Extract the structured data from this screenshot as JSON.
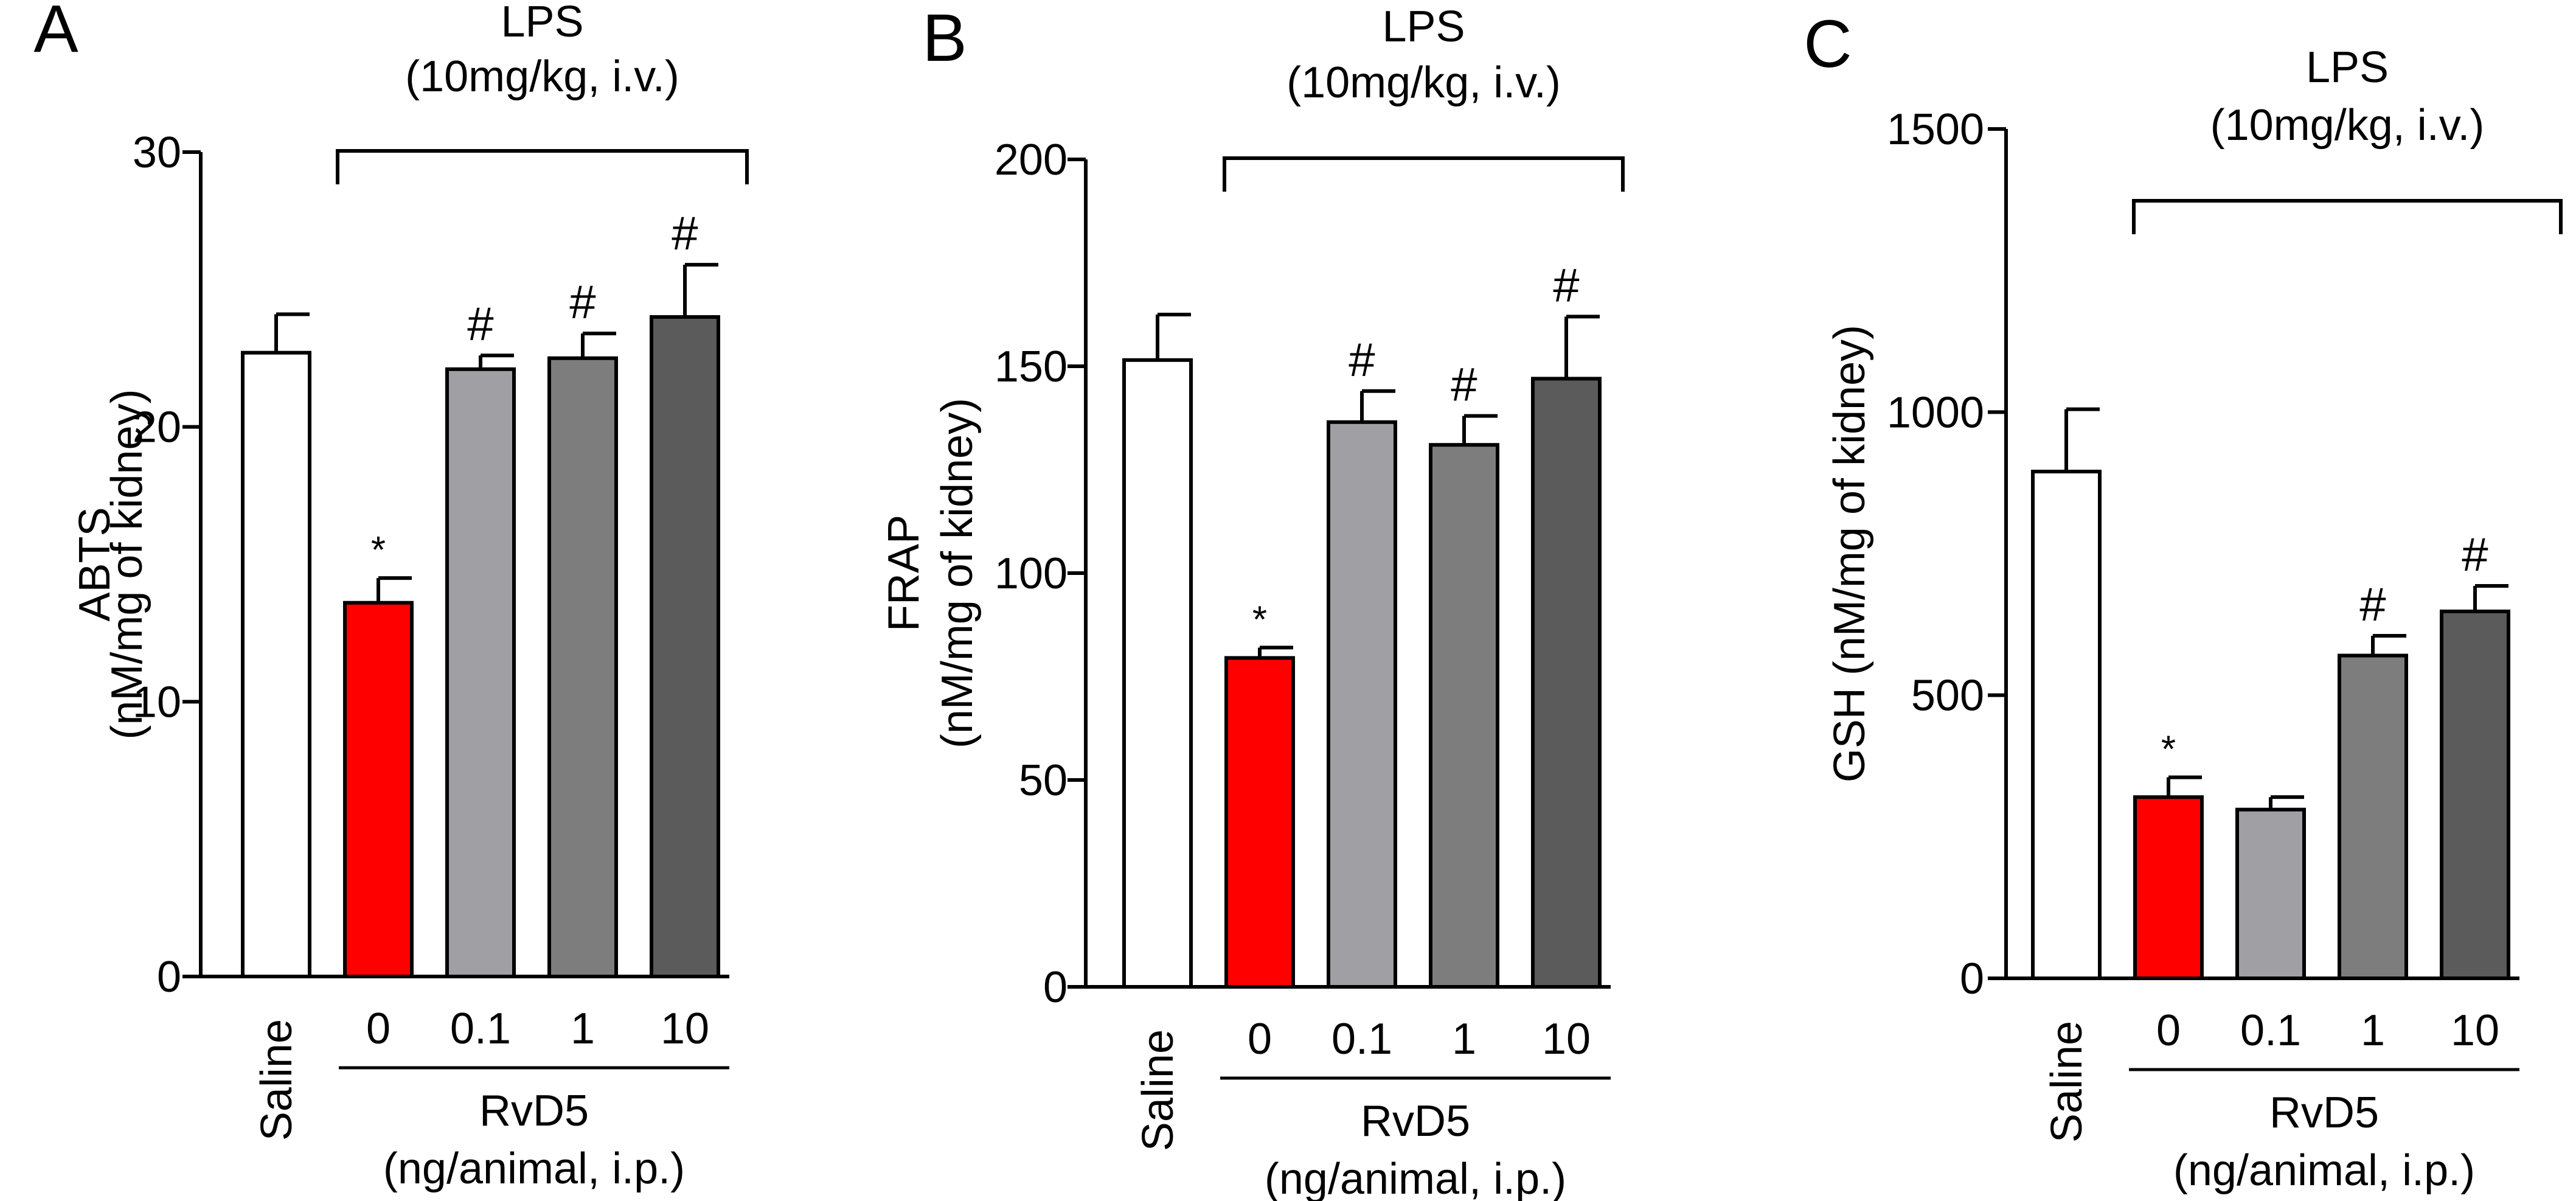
{
  "chart_data": [
    {
      "type": "bar",
      "panel": "A",
      "ylabel": "ABTS",
      "ylabel_units": "(nM/mg of kidney)",
      "ylim": [
        0,
        30
      ],
      "yticks": [
        0,
        10,
        20,
        30
      ],
      "categories": [
        "Saline",
        "0",
        "0.1",
        "1",
        "10"
      ],
      "values": [
        22.7,
        13.6,
        22.1,
        22.5,
        24.0
      ],
      "errors": [
        1.4,
        0.9,
        0.5,
        0.9,
        1.9
      ],
      "colors": [
        "#ffffff",
        "#ff0000",
        "#a0a0a4",
        "#7d7d7d",
        "#5b5b5b"
      ],
      "annotations": [
        "",
        "*",
        "#",
        "#",
        "#"
      ],
      "lps_label": "LPS",
      "lps_dose": "(10mg/kg, i.v.)",
      "rvd5_label": "RvD5",
      "rvd5_dose": "(ng/animal, i.p.)"
    },
    {
      "type": "bar",
      "panel": "B",
      "ylabel": "FRAP",
      "ylabel_units": "(nM/mg of kidney)",
      "ylim": [
        0,
        200
      ],
      "yticks": [
        0,
        50,
        100,
        150,
        200
      ],
      "categories": [
        "Saline",
        "0",
        "0.1",
        "1",
        "10"
      ],
      "values": [
        151.5,
        79.5,
        136.5,
        131.0,
        147.0
      ],
      "errors": [
        11.0,
        2.5,
        7.5,
        7.0,
        15.0
      ],
      "colors": [
        "#ffffff",
        "#ff0000",
        "#a0a0a4",
        "#7d7d7d",
        "#5b5b5b"
      ],
      "annotations": [
        "",
        "*",
        "#",
        "#",
        "#"
      ],
      "lps_label": "LPS",
      "lps_dose": "(10mg/kg, i.v.)",
      "rvd5_label": "RvD5",
      "rvd5_dose": "(ng/animal, i.p.)"
    },
    {
      "type": "bar",
      "panel": "C",
      "ylabel": "GSH (nM/mg of kidney)",
      "ylabel_units": "",
      "ylim": [
        0,
        1500
      ],
      "yticks": [
        0,
        500,
        1000,
        1500
      ],
      "categories": [
        "Saline",
        "0",
        "0.1",
        "1",
        "10"
      ],
      "values": [
        895,
        320,
        298,
        570,
        648
      ],
      "errors": [
        110,
        35,
        22,
        35,
        45
      ],
      "colors": [
        "#ffffff",
        "#ff0000",
        "#a0a0a4",
        "#7d7d7d",
        "#5b5b5b"
      ],
      "annotations": [
        "",
        "*",
        "",
        "#",
        "#"
      ],
      "lps_label": "LPS",
      "lps_dose": "(10mg/kg, i.v.)",
      "rvd5_label": "RvD5",
      "rvd5_dose": "(ng/animal, i.p.)"
    }
  ]
}
